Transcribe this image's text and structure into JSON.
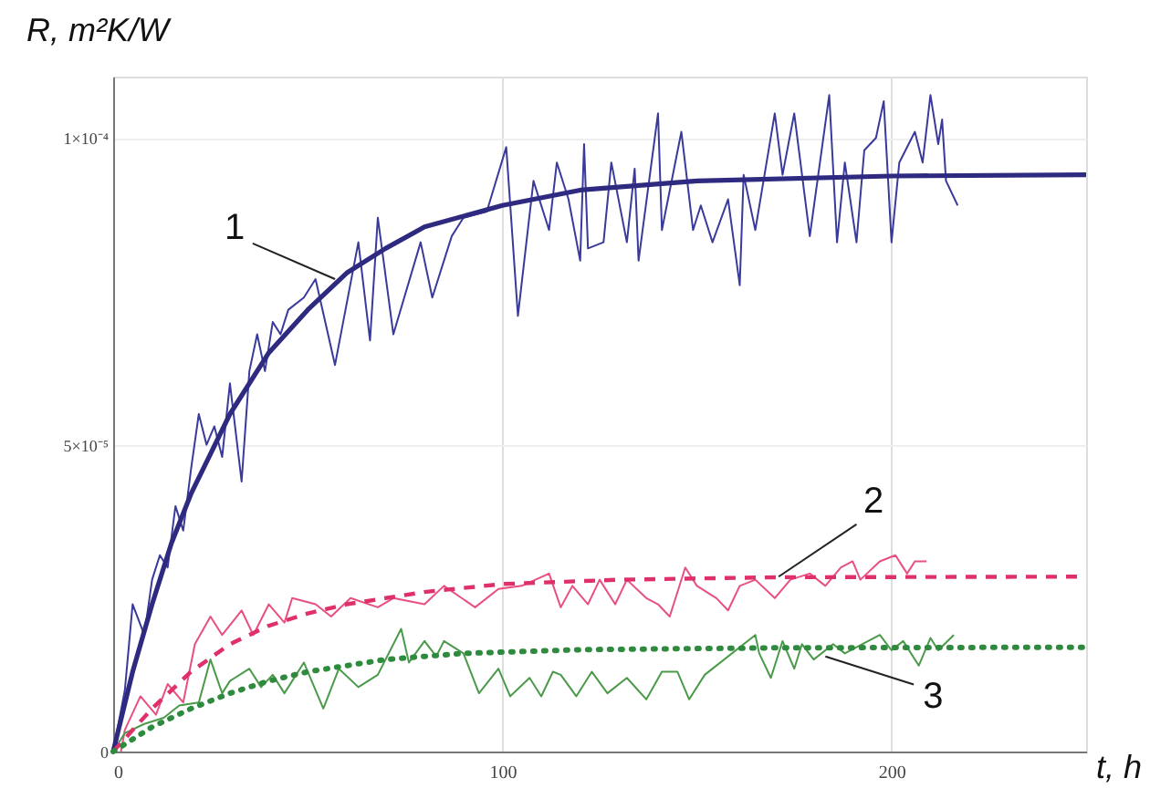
{
  "chart_data": {
    "type": "line",
    "xlabel": "t, h",
    "ylabel": "R, m²K/W",
    "xlim": [
      0,
      250
    ],
    "ylim": [
      0,
      0.00011
    ],
    "xticks": [
      0,
      100,
      200
    ],
    "yticks": [
      0,
      {
        "value": 5e-05,
        "label": "5×10⁻⁵"
      },
      {
        "value": 0.0001,
        "label": "1×10⁻⁴"
      }
    ],
    "grid": true,
    "marker": "none",
    "annotations": [
      {
        "text": "1",
        "x": 57,
        "y": 7.7e-05
      },
      {
        "text": "2",
        "x": 171,
        "y": 2.85e-05
      },
      {
        "text": "3",
        "x": 183,
        "y": 1.55e-05
      }
    ],
    "series": [
      {
        "color": "#3a3a9a",
        "line_style": "solid",
        "x": [
          0,
          3,
          5,
          8,
          10,
          12,
          14,
          16,
          18,
          20,
          22,
          24,
          26,
          28,
          30,
          33,
          35,
          37,
          39,
          41,
          43,
          45,
          49,
          52,
          57,
          63,
          66,
          68,
          72,
          79,
          82,
          87,
          90,
          96,
          101,
          104,
          108,
          112,
          114,
          117,
          120,
          121,
          122,
          126,
          128,
          132,
          134,
          135,
          140,
          141,
          146,
          149,
          151,
          154,
          158,
          161,
          162,
          165,
          170,
          172,
          175,
          179,
          184,
          186,
          188,
          191,
          193,
          196,
          198,
          200,
          202,
          206,
          208,
          210,
          212,
          213,
          214,
          217
        ],
        "values": [
          0,
          1e-05,
          2.4e-05,
          1.9e-05,
          2.8e-05,
          3.2e-05,
          3e-05,
          4e-05,
          3.6e-05,
          4.6e-05,
          5.5e-05,
          5e-05,
          5.3e-05,
          4.8e-05,
          6e-05,
          4.4e-05,
          6.2e-05,
          6.8e-05,
          6.2e-05,
          7e-05,
          6.8e-05,
          7.2e-05,
          7.4e-05,
          7.7e-05,
          6.3e-05,
          8.3e-05,
          6.7e-05,
          8.7e-05,
          6.8e-05,
          8.3e-05,
          7.4e-05,
          8.4e-05,
          8.7e-05,
          8.8e-05,
          9.85e-05,
          7.1e-05,
          9.3e-05,
          8.5e-05,
          9.6e-05,
          9e-05,
          8e-05,
          9.9e-05,
          8.2e-05,
          8.3e-05,
          9.6e-05,
          8.3e-05,
          9.5e-05,
          8e-05,
          0.000104,
          8.5e-05,
          0.000101,
          8.5e-05,
          8.9e-05,
          8.3e-05,
          9e-05,
          7.6e-05,
          9.4e-05,
          8.5e-05,
          0.000104,
          9.4e-05,
          0.000104,
          8.4e-05,
          0.000107,
          8.3e-05,
          9.6e-05,
          8.3e-05,
          9.8e-05,
          0.0001,
          0.000106,
          8.3e-05,
          9.6e-05,
          0.000101,
          9.6e-05,
          0.000107,
          9.9e-05,
          0.000103,
          9.3e-05,
          8.9e-05
        ]
      },
      {
        "color": "#e8507f",
        "line_style": "solid",
        "x": [
          2,
          3,
          7,
          11,
          14,
          18,
          21,
          25,
          28,
          33,
          36,
          40,
          44,
          46,
          52,
          56,
          61,
          68,
          72,
          80,
          85,
          93,
          99,
          105,
          112,
          115,
          118,
          122,
          125,
          129,
          132,
          137,
          140,
          143,
          147,
          150,
          155,
          158,
          161,
          165,
          170,
          174,
          179,
          183,
          187,
          190,
          192,
          197,
          201,
          204,
          206,
          209
        ],
        "values": [
          0,
          3.5e-06,
          9e-06,
          6e-06,
          1.1e-05,
          8e-06,
          1.75e-05,
          2.2e-05,
          1.9e-05,
          2.3e-05,
          1.9e-05,
          2.4e-05,
          2.1e-05,
          2.5e-05,
          2.4e-05,
          2.2e-05,
          2.5e-05,
          2.35e-05,
          2.5e-05,
          2.4e-05,
          2.7e-05,
          2.35e-05,
          2.65e-05,
          2.7e-05,
          2.9e-05,
          2.35e-05,
          2.7e-05,
          2.4e-05,
          2.8e-05,
          2.4e-05,
          2.8e-05,
          2.5e-05,
          2.4e-05,
          2.2e-05,
          3e-05,
          2.7e-05,
          2.5e-05,
          2.3e-05,
          2.7e-05,
          2.8e-05,
          2.5e-05,
          2.8e-05,
          2.9e-05,
          2.7e-05,
          3e-05,
          3.1e-05,
          2.8e-05,
          3.1e-05,
          3.2e-05,
          2.9e-05,
          3.1e-05,
          3.1e-05
        ]
      },
      {
        "color": "#4a9a4a",
        "line_style": "solid",
        "x": [
          0,
          3,
          8,
          13,
          17,
          22,
          25,
          28,
          30,
          35,
          38,
          41,
          44,
          49,
          54,
          58,
          63,
          68,
          74,
          76,
          80,
          83,
          85,
          90,
          94,
          99,
          102,
          107,
          110,
          113,
          115,
          119,
          123,
          127,
          132,
          137,
          141,
          145,
          148,
          152,
          165,
          166,
          169,
          172,
          175,
          177,
          180,
          185,
          188,
          197,
          200,
          203,
          207,
          210,
          212,
          216
        ],
        "values": [
          0,
          3e-06,
          4.5e-06,
          5.5e-06,
          7.5e-06,
          8e-06,
          1.5e-05,
          9.5e-06,
          1.15e-05,
          1.35e-05,
          1.05e-05,
          1.25e-05,
          9.5e-06,
          1.45e-05,
          7e-06,
          1.35e-05,
          1.05e-05,
          1.25e-05,
          2e-05,
          1.45e-05,
          1.8e-05,
          1.55e-05,
          1.8e-05,
          1.6e-05,
          9.5e-06,
          1.35e-05,
          9e-06,
          1.2e-05,
          9e-06,
          1.3e-05,
          1.25e-05,
          9e-06,
          1.3e-05,
          9.5e-06,
          1.2e-05,
          8.5e-06,
          1.3e-05,
          1.3e-05,
          8.5e-06,
          1.25e-05,
          1.9e-05,
          1.6e-05,
          1.2e-05,
          1.8e-05,
          1.35e-05,
          1.75e-05,
          1.5e-05,
          1.75e-05,
          1.6e-05,
          1.9e-05,
          1.65e-05,
          1.8e-05,
          1.4e-05,
          1.85e-05,
          1.65e-05,
          1.9e-05
        ]
      },
      {
        "color": "#2e2a80",
        "line_style": "solid",
        "x": [
          0,
          5,
          10,
          15,
          20,
          30,
          40,
          50,
          60,
          70,
          80,
          100,
          120,
          150,
          200,
          250
        ],
        "values": [
          0,
          1.3e-05,
          2.4e-05,
          3.4e-05,
          4.2e-05,
          5.5e-05,
          6.5e-05,
          7.2e-05,
          7.8e-05,
          8.2e-05,
          8.55e-05,
          8.9e-05,
          9.15e-05,
          9.3e-05,
          9.38e-05,
          9.4e-05
        ]
      },
      {
        "color": "#e0306a",
        "line_style": "dashed",
        "x": [
          0,
          10,
          20,
          30,
          40,
          50,
          60,
          80,
          100,
          130,
          170,
          250
        ],
        "values": [
          0,
          7e-06,
          1.3e-05,
          1.75e-05,
          2.05e-05,
          2.25e-05,
          2.4e-05,
          2.6e-05,
          2.73e-05,
          2.8e-05,
          2.84e-05,
          2.85e-05
        ]
      },
      {
        "color": "#2e8b3e",
        "line_style": "dotted",
        "x": [
          0,
          10,
          20,
          30,
          40,
          50,
          70,
          90,
          120,
          170,
          250
        ],
        "values": [
          0,
          4e-06,
          7e-06,
          9.5e-06,
          1.15e-05,
          1.3e-05,
          1.5e-05,
          1.6e-05,
          1.66e-05,
          1.69e-05,
          1.7e-05
        ]
      }
    ]
  }
}
